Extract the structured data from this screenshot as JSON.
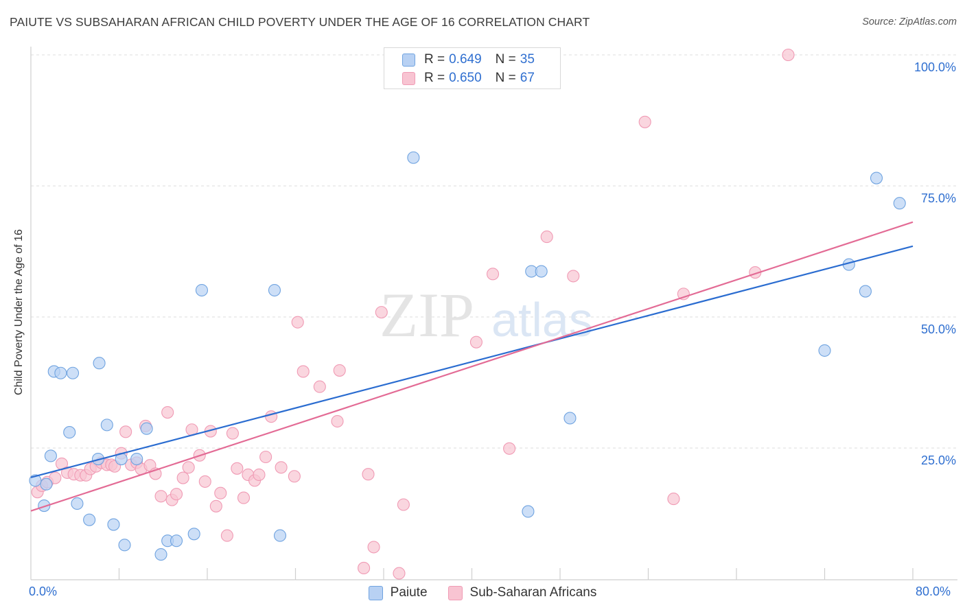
{
  "title": "PAIUTE VS SUBSAHARAN AFRICAN CHILD POVERTY UNDER THE AGE OF 16 CORRELATION CHART",
  "source": "Source: ZipAtlas.com",
  "watermark": {
    "zip": "ZIP",
    "atlas": "atlas"
  },
  "legend_top": [
    {
      "r_label": "R =",
      "r_value": "0.649",
      "n_label": "N =",
      "n_value": "35"
    },
    {
      "r_label": "R =",
      "r_value": "0.650",
      "n_label": "N =",
      "n_value": "67"
    }
  ],
  "legend_bottom": [
    "Paiute",
    "Sub-Saharan Africans"
  ],
  "chart_data": {
    "type": "scatter",
    "title": "PAIUTE VS SUBSAHARAN AFRICAN CHILD POVERTY UNDER THE AGE OF 16 CORRELATION CHART",
    "xlabel": "",
    "ylabel": "Child Poverty Under the Age of 16",
    "xlim": [
      0,
      80
    ],
    "ylim": [
      0,
      105
    ],
    "x_tick_labels": [
      "0.0%",
      "80.0%"
    ],
    "y_ticks": [
      25,
      50,
      75,
      100
    ],
    "y_tick_labels": [
      "25.0%",
      "50.0%",
      "75.0%",
      "100.0%"
    ],
    "grid": true,
    "legend_position": "top-center",
    "series": [
      {
        "name": "Paiute",
        "color": "#6fa3e0",
        "fill": "#b8d1f3",
        "trend_color": "#2a6cd0",
        "trend": {
          "x": [
            0,
            80
          ],
          "y": [
            19.4,
            63.5
          ]
        },
        "points": [
          [
            0.4,
            18.8
          ],
          [
            1.2,
            14.0
          ],
          [
            1.8,
            23.5
          ],
          [
            2.1,
            39.6
          ],
          [
            2.7,
            39.3
          ],
          [
            3.5,
            28.0
          ],
          [
            3.8,
            39.3
          ],
          [
            4.2,
            14.4
          ],
          [
            5.3,
            11.3
          ],
          [
            6.1,
            22.9
          ],
          [
            6.2,
            41.2
          ],
          [
            6.9,
            29.4
          ],
          [
            7.5,
            10.4
          ],
          [
            8.2,
            22.9
          ],
          [
            8.5,
            6.5
          ],
          [
            9.6,
            22.9
          ],
          [
            10.5,
            28.7
          ],
          [
            11.8,
            4.7
          ],
          [
            12.4,
            7.3
          ],
          [
            13.2,
            7.3
          ],
          [
            14.8,
            8.6
          ],
          [
            15.5,
            55.1
          ],
          [
            22.1,
            55.1
          ],
          [
            22.6,
            8.3
          ],
          [
            34.7,
            80.4
          ],
          [
            45.1,
            12.9
          ],
          [
            45.4,
            58.7
          ],
          [
            46.3,
            58.7
          ],
          [
            48.9,
            30.7
          ],
          [
            72.0,
            43.6
          ],
          [
            74.2,
            60.0
          ],
          [
            75.7,
            54.9
          ],
          [
            76.7,
            76.5
          ],
          [
            78.8,
            71.7
          ],
          [
            1.4,
            18.1
          ]
        ]
      },
      {
        "name": "Sub-Saharan Africans",
        "color": "#f09ab4",
        "fill": "#f8c4d2",
        "trend_color": "#e36b95",
        "trend": {
          "x": [
            0,
            80
          ],
          "y": [
            13.0,
            68.1
          ]
        },
        "points": [
          [
            0.6,
            16.6
          ],
          [
            1.0,
            17.8
          ],
          [
            1.5,
            18.5
          ],
          [
            2.2,
            19.3
          ],
          [
            2.8,
            22.0
          ],
          [
            3.3,
            20.3
          ],
          [
            3.9,
            20.0
          ],
          [
            4.5,
            19.8
          ],
          [
            5.0,
            19.8
          ],
          [
            5.4,
            21.0
          ],
          [
            5.9,
            21.5
          ],
          [
            6.4,
            22.2
          ],
          [
            6.9,
            21.8
          ],
          [
            7.3,
            21.8
          ],
          [
            7.6,
            21.5
          ],
          [
            8.2,
            24.0
          ],
          [
            8.6,
            28.1
          ],
          [
            9.1,
            21.8
          ],
          [
            9.6,
            22.2
          ],
          [
            10.0,
            21.0
          ],
          [
            10.4,
            29.2
          ],
          [
            10.8,
            21.7
          ],
          [
            11.3,
            20.1
          ],
          [
            11.8,
            15.8
          ],
          [
            12.4,
            31.8
          ],
          [
            12.8,
            15.1
          ],
          [
            13.2,
            16.2
          ],
          [
            13.8,
            19.3
          ],
          [
            14.3,
            21.3
          ],
          [
            14.6,
            28.5
          ],
          [
            15.3,
            23.6
          ],
          [
            15.8,
            18.6
          ],
          [
            16.3,
            28.2
          ],
          [
            16.8,
            13.9
          ],
          [
            17.2,
            16.4
          ],
          [
            17.8,
            8.3
          ],
          [
            18.3,
            27.8
          ],
          [
            18.7,
            21.1
          ],
          [
            19.3,
            15.5
          ],
          [
            19.7,
            19.9
          ],
          [
            20.3,
            18.8
          ],
          [
            20.7,
            19.9
          ],
          [
            21.3,
            23.3
          ],
          [
            21.8,
            31.0
          ],
          [
            22.7,
            21.3
          ],
          [
            23.9,
            19.6
          ],
          [
            24.2,
            49.0
          ],
          [
            24.7,
            39.6
          ],
          [
            26.2,
            36.7
          ],
          [
            27.8,
            30.1
          ],
          [
            28.0,
            39.8
          ],
          [
            30.6,
            20.0
          ],
          [
            31.1,
            6.1
          ],
          [
            30.2,
            2.1
          ],
          [
            31.8,
            50.9
          ],
          [
            33.4,
            1.1
          ],
          [
            33.8,
            14.2
          ],
          [
            40.4,
            45.2
          ],
          [
            41.9,
            58.2
          ],
          [
            43.4,
            24.9
          ],
          [
            46.8,
            65.3
          ],
          [
            49.2,
            57.8
          ],
          [
            55.7,
            87.2
          ],
          [
            58.3,
            15.3
          ],
          [
            59.2,
            54.4
          ],
          [
            65.7,
            58.5
          ],
          [
            68.7,
            100.0
          ]
        ]
      }
    ]
  }
}
